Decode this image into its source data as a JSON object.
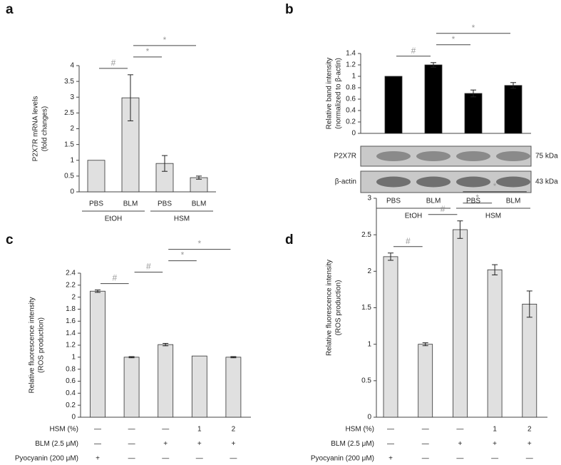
{
  "chart_data": [
    {
      "type": "bar",
      "panel": "a",
      "y_label": [
        "P2X7R mRNA levels",
        "(fold changes)"
      ],
      "ylim": [
        0,
        4
      ],
      "yticks": [
        0,
        0.5,
        1,
        1.5,
        2,
        2.5,
        3,
        3.5,
        4
      ],
      "groups": [
        {
          "label": "EtOH",
          "categories": [
            "PBS",
            "BLM"
          ]
        },
        {
          "label": "HSM",
          "categories": [
            "PBS",
            "BLM"
          ]
        }
      ],
      "series": [
        {
          "color": "#e0e0e0",
          "values": [
            1,
            2.98,
            0.9,
            0.45
          ],
          "errors": [
            0,
            0.73,
            0.25,
            0.05
          ]
        }
      ],
      "annotations": [
        {
          "text": "#",
          "between": [
            0,
            1
          ]
        },
        {
          "text": "*",
          "between": [
            1,
            2
          ]
        },
        {
          "text": "*",
          "between": [
            1,
            3
          ]
        }
      ]
    },
    {
      "type": "bar",
      "panel": "b",
      "y_label": [
        "Relative band intensity",
        "(normalized to β-actin)"
      ],
      "ylim": [
        0,
        1.4
      ],
      "yticks": [
        0,
        0.2,
        0.4,
        0.6,
        0.8,
        1,
        1.2,
        1.4
      ],
      "groups": [
        {
          "label": "EtOH",
          "categories": [
            "PBS",
            "BLM"
          ]
        },
        {
          "label": "HSM",
          "categories": [
            "PBS",
            "BLM"
          ]
        }
      ],
      "series": [
        {
          "color": "#000000",
          "values": [
            1,
            1.2,
            0.7,
            0.84
          ],
          "errors": [
            0,
            0.04,
            0.06,
            0.05
          ]
        }
      ],
      "blot": [
        {
          "label": "P2X7R",
          "size": "75 kDa"
        },
        {
          "label": "β-actin",
          "size": "43 kDa"
        }
      ],
      "annotations": [
        {
          "text": "#",
          "between": [
            0,
            1
          ]
        },
        {
          "text": "*",
          "between": [
            1,
            2
          ]
        },
        {
          "text": "*",
          "between": [
            1,
            3
          ]
        }
      ]
    },
    {
      "type": "bar",
      "panel": "c",
      "y_label": [
        "Relative fluorescence intensity",
        "(ROS production)"
      ],
      "ylim": [
        0,
        2.4
      ],
      "yticks": [
        0,
        0.2,
        0.4,
        0.6,
        0.8,
        1,
        1.2,
        1.4,
        1.6,
        1.8,
        2,
        2.2,
        2.4
      ],
      "series": [
        {
          "color": "#e0e0e0",
          "values": [
            2.1,
            1.0,
            1.21,
            1.02,
            1.0
          ],
          "errors": [
            0.02,
            0.01,
            0.02,
            0,
            0.01
          ]
        }
      ],
      "conditions": [
        {
          "label": "HSM (%)",
          "values": [
            "—",
            "—",
            "—",
            "1",
            "2"
          ]
        },
        {
          "label": "BLM (2.5 μM)",
          "values": [
            "—",
            "—",
            "+",
            "+",
            "+"
          ]
        },
        {
          "label": "Pyocyanin (200 μM)",
          "values": [
            "+",
            "—",
            "—",
            "—",
            "—"
          ]
        }
      ],
      "annotations": [
        {
          "text": "#",
          "between": [
            0,
            1
          ]
        },
        {
          "text": "#",
          "between": [
            1,
            2
          ]
        },
        {
          "text": "*",
          "between": [
            2,
            3
          ]
        },
        {
          "text": "*",
          "between": [
            2,
            4
          ]
        }
      ]
    },
    {
      "type": "bar",
      "panel": "d",
      "y_label": [
        "Relative fluorescence intensity",
        "(ROS production)"
      ],
      "ylim": [
        0,
        3
      ],
      "yticks": [
        0,
        0.5,
        1,
        1.5,
        2,
        2.5,
        3
      ],
      "series": [
        {
          "color": "#e0e0e0",
          "values": [
            2.2,
            1.0,
            2.57,
            2.02,
            1.55
          ],
          "errors": [
            0.05,
            0.02,
            0.12,
            0.07,
            0.18
          ]
        }
      ],
      "conditions": [
        {
          "label": "HSM (%)",
          "values": [
            "—",
            "—",
            "—",
            "1",
            "2"
          ]
        },
        {
          "label": "BLM (2.5 μM)",
          "values": [
            "—",
            "—",
            "+",
            "+",
            "+"
          ]
        },
        {
          "label": "Pyocyanin (200 μM)",
          "values": [
            "+",
            "—",
            "—",
            "—",
            "—"
          ]
        }
      ],
      "annotations": [
        {
          "text": "#",
          "between": [
            0,
            1
          ]
        },
        {
          "text": "#",
          "between": [
            1,
            2
          ]
        },
        {
          "text": "*",
          "between": [
            2,
            3
          ]
        },
        {
          "text": "*",
          "between": [
            2,
            4
          ]
        }
      ]
    }
  ]
}
